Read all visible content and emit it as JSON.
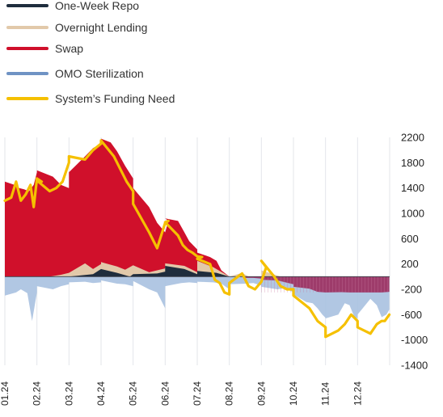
{
  "chart_data": {
    "type": "area",
    "title": "",
    "xlabel": "",
    "ylabel": "",
    "ylim": [
      -1400,
      2200
    ],
    "yticks": [
      2200,
      1800,
      1400,
      1000,
      600,
      200,
      -200,
      -600,
      -1000,
      -1400
    ],
    "ytick_labels": [
      "2200",
      "1800",
      "1400",
      "1000",
      "600",
      "200",
      "-200",
      "-600",
      "-1000",
      "-1400"
    ],
    "x_start_month": "01.24",
    "x_end_month": "12.24",
    "xtick_labels": [
      "01.24",
      "02.24",
      "03.24",
      "04.24",
      "05.24",
      "06.24",
      "07.24",
      "08.24",
      "09.24",
      "10.24",
      "11.24",
      "12.24"
    ],
    "grid": "vertical",
    "legend_position": "top-left",
    "colors": {
      "one_week_repo": "#1f2d3d",
      "overnight_lending": "#e2c9aa",
      "swap": "#d0102b",
      "omo_sterilization": "#a9c1e0",
      "omo_sterilization_line": "#6f93c4",
      "negative_swap": "#9b2356",
      "funding_need": "#f5c000",
      "grid": "#e3e6ea",
      "zero_line": "#3a3f47"
    },
    "series": [
      {
        "name": "One-Week Repo",
        "key": "one_week_repo",
        "x": [
          "03.24",
          "03.75",
          "04.24",
          "04.5",
          "04.9",
          "05.24",
          "05.75",
          "06.0",
          "06.24",
          "06.6",
          "07.0",
          "07.24",
          "07.6",
          "08.0",
          "08.24",
          "08.6",
          "09.0",
          "09.24",
          "09.6",
          "10.0",
          "10.24",
          "11.24",
          "12.24",
          "12.99"
        ],
        "values": [
          0,
          40,
          120,
          60,
          0,
          40,
          50,
          80,
          170,
          120,
          40,
          90,
          60,
          0,
          0,
          0,
          0,
          0,
          0,
          0,
          0,
          0,
          0,
          0
        ]
      },
      {
        "name": "Overnight Lending",
        "key": "overnight_lending",
        "x": [
          "01.24",
          "02.4",
          "02.75",
          "03.0",
          "03.24",
          "03.5",
          "03.75",
          "04.0",
          "04.24",
          "04.5",
          "04.75",
          "05.24",
          "05.5",
          "06.0",
          "06.24",
          "06.6",
          "07.0",
          "07.24",
          "07.5",
          "08.0",
          "08.24",
          "08.4",
          "08.6",
          "09.0",
          "09.24",
          "09.6",
          "10.24",
          "12.99"
        ],
        "values": [
          0,
          0,
          30,
          60,
          60,
          210,
          120,
          200,
          230,
          160,
          110,
          180,
          70,
          130,
          210,
          170,
          70,
          250,
          150,
          0,
          0,
          60,
          0,
          0,
          100,
          0,
          0,
          0
        ]
      },
      {
        "name": "Swap",
        "key": "swap",
        "x": [
          "01.24",
          "01.3",
          "01.45",
          "01.6",
          "01.75",
          "01.9",
          "02.0",
          "02.24",
          "02.5",
          "02.75",
          "03.0",
          "03.24",
          "03.5",
          "03.75",
          "04.0",
          "04.24",
          "04.3",
          "04.5",
          "04.75",
          "05.0",
          "05.24",
          "05.5",
          "05.75",
          "06.0",
          "06.1",
          "06.24",
          "06.4",
          "06.6",
          "06.75",
          "07.0",
          "07.24",
          "07.4",
          "07.6",
          "07.75",
          "08.0",
          "08.24",
          "08.35",
          "08.5",
          "08.75",
          "09.0",
          "09.24",
          "09.5",
          "09.75",
          "10.0",
          "10.24",
          "10.5",
          "10.75",
          "11.0",
          "11.24",
          "11.5",
          "11.75",
          "12.0",
          "12.24",
          "12.5",
          "12.75",
          "12.99"
        ],
        "values": [
          1500,
          1450,
          1400,
          1380,
          1350,
          1450,
          1650,
          1680,
          1580,
          1450,
          1400,
          1650,
          1900,
          2030,
          2100,
          2180,
          2120,
          1980,
          1750,
          1550,
          1400,
          1100,
          850,
          700,
          880,
          920,
          880,
          700,
          560,
          430,
          380,
          310,
          250,
          100,
          0,
          0,
          0,
          -20,
          -20,
          -30,
          -50,
          -60,
          -90,
          -120,
          -160,
          -190,
          -240,
          -250,
          -250,
          -245,
          -250,
          -250,
          -250,
          -250,
          -250,
          -240
        ]
      },
      {
        "name": "OMO Sterilization",
        "key": "omo_sterilization",
        "x": [
          "01.24",
          "01.35",
          "01.5",
          "01.7",
          "01.85",
          "02.0",
          "02.24",
          "02.5",
          "02.75",
          "03.0",
          "03.24",
          "03.5",
          "03.75",
          "04.0",
          "04.24",
          "04.5",
          "04.75",
          "05.0",
          "05.24",
          "05.5",
          "05.75",
          "06.0",
          "06.24",
          "06.5",
          "06.75",
          "07.0",
          "07.24",
          "07.5",
          "07.75",
          "08.0",
          "08.24",
          "08.5",
          "08.75",
          "09.0",
          "09.24",
          "09.5",
          "09.75",
          "10.0",
          "10.24",
          "10.4",
          "10.6",
          "10.75",
          "10.9",
          "11.0",
          "11.24",
          "11.4",
          "11.6",
          "11.75",
          "11.9",
          "12.0",
          "12.24",
          "12.4",
          "12.6",
          "12.75",
          "12.9",
          "12.99"
        ],
        "values": [
          -300,
          -250,
          -200,
          -260,
          -700,
          -250,
          -150,
          -200,
          -150,
          -120,
          -90,
          -80,
          -100,
          -90,
          -60,
          -110,
          -120,
          -150,
          -70,
          -200,
          -250,
          -500,
          -150,
          -100,
          -90,
          -100,
          -80,
          -90,
          -110,
          -200,
          -120,
          -110,
          -100,
          -140,
          -160,
          -200,
          -180,
          -250,
          -280,
          -400,
          -420,
          -500,
          -600,
          -650,
          -660,
          -600,
          -420,
          -450,
          -640,
          -660,
          -600,
          -350,
          -450,
          -640,
          -600,
          -520
        ]
      },
      {
        "name": "System’s Funding Need",
        "key": "funding_need",
        "x": [
          "01.24",
          "01.2",
          "01.35",
          "01.5",
          "01.65",
          "01.8",
          "01.9",
          "02.0",
          "02.15",
          "02.24",
          "02.4",
          "02.6",
          "02.8",
          "03.0",
          "03.24",
          "03.5",
          "03.75",
          "04.0",
          "04.24",
          "04.4",
          "04.6",
          "04.8",
          "05.0",
          "05.24",
          "05.5",
          "05.75",
          "06.0",
          "06.1",
          "06.24",
          "06.4",
          "06.55",
          "06.7",
          "06.85",
          "07.0",
          "07.15",
          "07.24",
          "07.4",
          "07.55",
          "07.7",
          "07.85",
          "08.0",
          "08.24",
          "08.4",
          "08.6",
          "08.8",
          "09.0",
          "09.15",
          "09.24",
          "09.4",
          "09.6",
          "09.8",
          "10.0",
          "10.24",
          "10.5",
          "10.75",
          "11.0",
          "11.24",
          "11.4",
          "11.6",
          "11.8",
          "12.0",
          "12.24",
          "12.4",
          "12.6",
          "12.75",
          "12.85",
          "12.99"
        ],
        "values": [
          1200,
          1250,
          1500,
          1200,
          1300,
          1450,
          1100,
          1550,
          1500,
          1520,
          1350,
          1400,
          1500,
          1800,
          1900,
          1850,
          2000,
          2100,
          2150,
          1900,
          1700,
          1500,
          1350,
          1150,
          700,
          450,
          850,
          880,
          860,
          650,
          500,
          420,
          380,
          320,
          310,
          280,
          200,
          -50,
          -100,
          -250,
          -280,
          -100,
          50,
          -150,
          -200,
          -80,
          150,
          250,
          0,
          -150,
          -200,
          -200,
          -300,
          -500,
          -700,
          -800,
          -950,
          -850,
          -750,
          -600,
          -700,
          -800,
          -900,
          -750,
          -700,
          -700,
          -600
        ]
      }
    ]
  }
}
